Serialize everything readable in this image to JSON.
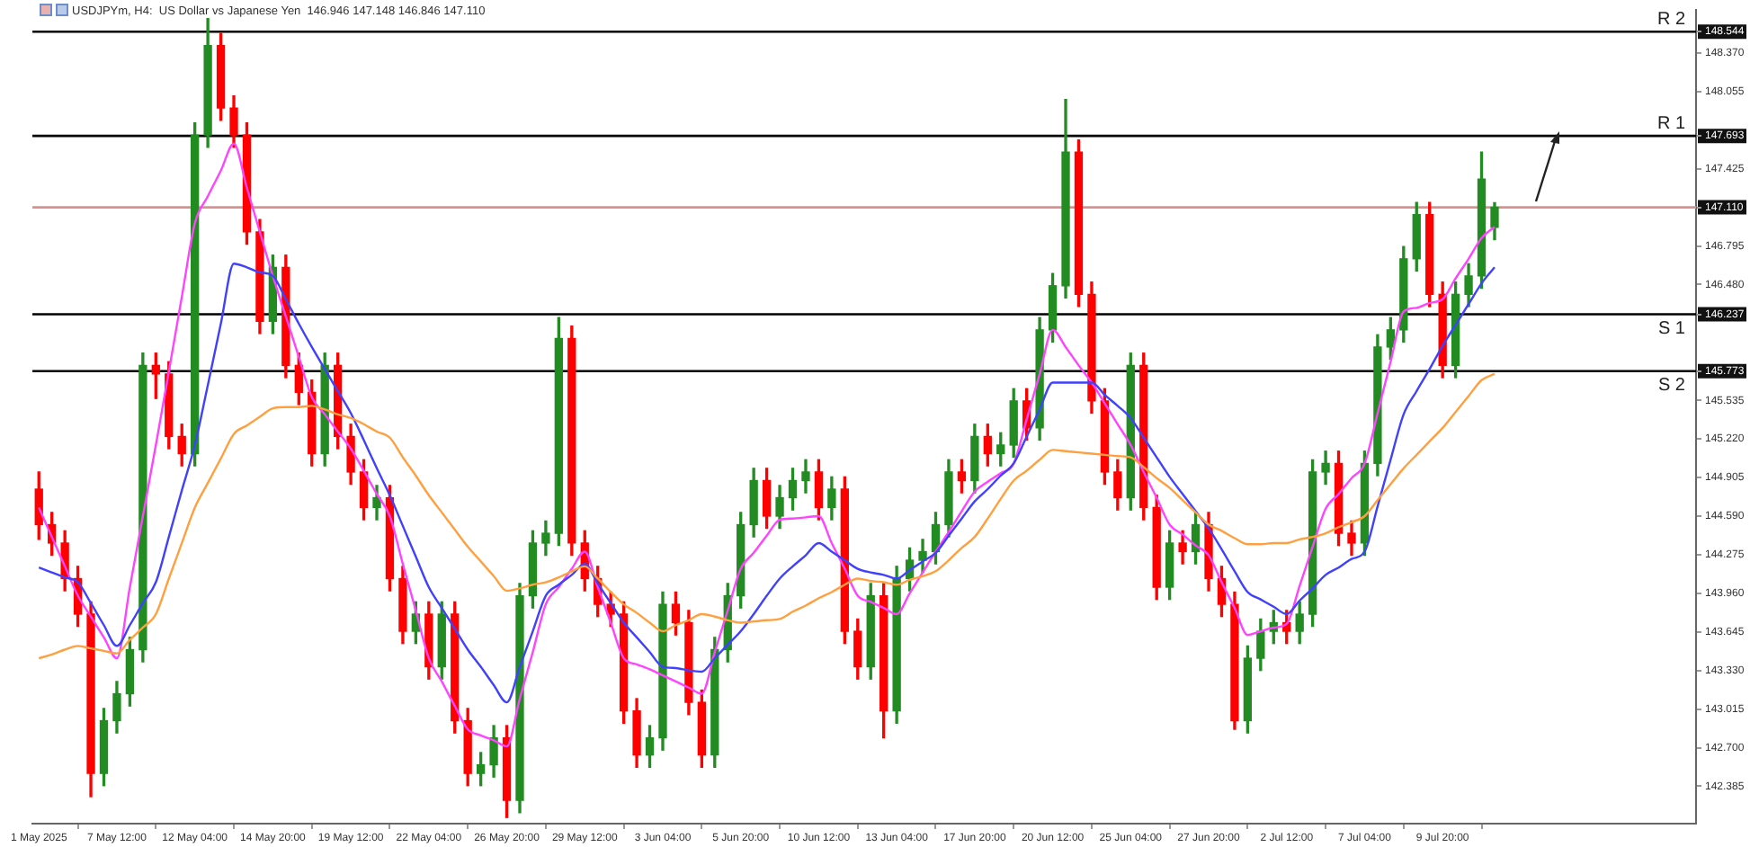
{
  "chart_data": {
    "type": "candlestick",
    "title": "USDJPYm, H4:  US Dollar vs Japanese Yen  146.946 147.148 146.846 147.110",
    "categories": [
      "1 May 2025",
      null,
      null,
      null,
      null,
      null,
      "7 May 12:00",
      null,
      null,
      null,
      null,
      null,
      "12 May 04:00",
      null,
      null,
      null,
      null,
      null,
      "14 May 20:00",
      null,
      null,
      null,
      null,
      null,
      "19 May 12:00",
      null,
      null,
      null,
      null,
      null,
      "22 May 04:00",
      null,
      null,
      null,
      null,
      null,
      "26 May 20:00",
      null,
      null,
      null,
      null,
      null,
      "29 May 12:00",
      null,
      null,
      null,
      null,
      null,
      "3 Jun 04:00",
      null,
      null,
      null,
      null,
      null,
      "5 Jun 20:00",
      null,
      null,
      null,
      null,
      null,
      "10 Jun 12:00",
      null,
      null,
      null,
      null,
      null,
      "13 Jun 04:00",
      null,
      null,
      null,
      null,
      null,
      "17 Jun 20:00",
      null,
      null,
      null,
      null,
      null,
      "20 Jun 12:00",
      null,
      null,
      null,
      null,
      null,
      "25 Jun 04:00",
      null,
      null,
      null,
      null,
      null,
      "27 Jun 20:00",
      null,
      null,
      null,
      null,
      null,
      "2 Jul 12:00",
      null,
      null,
      null,
      null,
      null,
      "7 Jul 04:00",
      null,
      null,
      null,
      null,
      null,
      "9 Jul 20:00",
      null,
      null,
      null,
      null
    ],
    "ohlc": [
      [
        144.81,
        144.95,
        144.4,
        144.52
      ],
      [
        144.52,
        144.62,
        144.27,
        144.37
      ],
      [
        144.37,
        144.47,
        143.98,
        144.08
      ],
      [
        144.08,
        144.18,
        143.69,
        143.79
      ],
      [
        143.79,
        143.89,
        142.3,
        142.49
      ],
      [
        142.49,
        143.02,
        142.39,
        142.92
      ],
      [
        142.92,
        143.24,
        142.82,
        143.14
      ],
      [
        143.14,
        143.6,
        143.04,
        143.5
      ],
      [
        143.5,
        145.92,
        143.4,
        145.82
      ],
      [
        145.82,
        145.92,
        145.55,
        145.75
      ],
      [
        145.75,
        145.85,
        145.14,
        145.24
      ],
      [
        145.24,
        145.34,
        145.0,
        145.1
      ],
      [
        145.1,
        147.8,
        145.0,
        147.7
      ],
      [
        147.7,
        148.65,
        147.6,
        148.43
      ],
      [
        148.43,
        148.53,
        147.82,
        147.92
      ],
      [
        147.92,
        148.02,
        147.6,
        147.7
      ],
      [
        147.7,
        147.8,
        146.81,
        146.91
      ],
      [
        146.91,
        147.01,
        146.08,
        146.18
      ],
      [
        146.18,
        146.72,
        146.08,
        146.62
      ],
      [
        146.62,
        146.72,
        145.72,
        145.82
      ],
      [
        145.82,
        145.92,
        145.5,
        145.6
      ],
      [
        145.6,
        145.7,
        145.0,
        145.1
      ],
      [
        145.1,
        145.92,
        145.0,
        145.82
      ],
      [
        145.82,
        145.92,
        145.14,
        145.24
      ],
      [
        145.24,
        145.34,
        144.85,
        144.95
      ],
      [
        144.95,
        145.05,
        144.56,
        144.66
      ],
      [
        144.66,
        144.84,
        144.56,
        144.74
      ],
      [
        144.74,
        144.84,
        143.98,
        144.08
      ],
      [
        144.08,
        144.18,
        143.55,
        143.65
      ],
      [
        143.65,
        143.89,
        143.55,
        143.79
      ],
      [
        143.79,
        143.89,
        143.26,
        143.36
      ],
      [
        143.36,
        143.89,
        143.26,
        143.79
      ],
      [
        143.79,
        143.89,
        142.82,
        142.92
      ],
      [
        142.92,
        143.02,
        142.39,
        142.49
      ],
      [
        142.49,
        142.66,
        142.39,
        142.56
      ],
      [
        142.56,
        142.88,
        142.46,
        142.78
      ],
      [
        142.78,
        142.88,
        142.13,
        142.27
      ],
      [
        142.27,
        144.04,
        142.17,
        143.94
      ],
      [
        143.94,
        144.47,
        143.84,
        144.37
      ],
      [
        144.37,
        144.55,
        144.27,
        144.45
      ],
      [
        144.45,
        146.21,
        144.35,
        146.04
      ],
      [
        146.04,
        146.14,
        144.27,
        144.37
      ],
      [
        144.37,
        144.47,
        143.98,
        144.08
      ],
      [
        144.08,
        144.18,
        143.77,
        143.87
      ],
      [
        143.87,
        143.97,
        143.69,
        143.79
      ],
      [
        143.79,
        143.89,
        142.9,
        143.0
      ],
      [
        143.0,
        143.1,
        142.54,
        142.64
      ],
      [
        142.64,
        142.88,
        142.54,
        142.78
      ],
      [
        142.78,
        143.97,
        142.68,
        143.87
      ],
      [
        143.87,
        143.97,
        143.62,
        143.72
      ],
      [
        143.72,
        143.82,
        142.97,
        143.07
      ],
      [
        143.07,
        143.17,
        142.54,
        142.64
      ],
      [
        142.64,
        143.6,
        142.54,
        143.5
      ],
      [
        143.5,
        144.04,
        143.4,
        143.94
      ],
      [
        143.94,
        144.62,
        143.84,
        144.52
      ],
      [
        144.52,
        144.98,
        144.42,
        144.88
      ],
      [
        144.88,
        144.98,
        144.49,
        144.59
      ],
      [
        144.59,
        144.84,
        144.49,
        144.74
      ],
      [
        144.74,
        144.98,
        144.64,
        144.88
      ],
      [
        144.88,
        145.05,
        144.78,
        144.95
      ],
      [
        144.95,
        145.05,
        144.56,
        144.66
      ],
      [
        144.66,
        144.91,
        144.56,
        144.81
      ],
      [
        144.81,
        144.91,
        143.55,
        143.65
      ],
      [
        143.65,
        143.75,
        143.26,
        143.36
      ],
      [
        143.36,
        144.04,
        143.26,
        143.94
      ],
      [
        143.94,
        144.04,
        142.78,
        143.0
      ],
      [
        143.0,
        144.18,
        142.9,
        144.08
      ],
      [
        144.08,
        144.33,
        143.98,
        144.23
      ],
      [
        144.23,
        144.4,
        144.13,
        144.3
      ],
      [
        144.3,
        144.62,
        144.2,
        144.52
      ],
      [
        144.52,
        145.05,
        144.42,
        144.95
      ],
      [
        144.95,
        145.05,
        144.78,
        144.88
      ],
      [
        144.88,
        145.34,
        144.78,
        145.24
      ],
      [
        145.24,
        145.34,
        145.0,
        145.1
      ],
      [
        145.1,
        145.27,
        145.0,
        145.17
      ],
      [
        145.17,
        145.63,
        145.07,
        145.53
      ],
      [
        145.53,
        145.63,
        145.21,
        145.31
      ],
      [
        145.31,
        146.21,
        145.21,
        146.11
      ],
      [
        146.11,
        146.57,
        146.01,
        146.47
      ],
      [
        146.47,
        147.99,
        146.37,
        147.56
      ],
      [
        147.56,
        147.66,
        146.3,
        146.4
      ],
      [
        146.4,
        146.5,
        145.43,
        145.53
      ],
      [
        145.53,
        145.63,
        144.85,
        144.95
      ],
      [
        144.95,
        145.05,
        144.64,
        144.74
      ],
      [
        144.74,
        145.92,
        144.64,
        145.82
      ],
      [
        145.82,
        145.92,
        144.56,
        144.66
      ],
      [
        144.66,
        144.76,
        143.91,
        144.01
      ],
      [
        144.01,
        144.47,
        143.91,
        144.37
      ],
      [
        144.37,
        144.47,
        144.2,
        144.3
      ],
      [
        144.3,
        144.62,
        144.2,
        144.52
      ],
      [
        144.52,
        144.62,
        143.98,
        144.08
      ],
      [
        144.08,
        144.18,
        143.77,
        143.87
      ],
      [
        143.87,
        143.97,
        142.85,
        142.92
      ],
      [
        142.92,
        143.53,
        142.82,
        143.43
      ],
      [
        143.43,
        143.75,
        143.33,
        143.65
      ],
      [
        143.65,
        143.82,
        143.55,
        143.72
      ],
      [
        143.72,
        143.82,
        143.55,
        143.65
      ],
      [
        143.65,
        143.89,
        143.55,
        143.79
      ],
      [
        143.79,
        145.05,
        143.69,
        144.95
      ],
      [
        144.95,
        145.12,
        144.85,
        145.02
      ],
      [
        145.02,
        145.12,
        144.35,
        144.45
      ],
      [
        144.45,
        144.55,
        144.27,
        144.37
      ],
      [
        144.37,
        145.12,
        144.27,
        145.02
      ],
      [
        145.02,
        146.07,
        144.92,
        145.97
      ],
      [
        145.97,
        146.21,
        145.87,
        146.11
      ],
      [
        146.11,
        146.79,
        146.01,
        146.69
      ],
      [
        146.69,
        147.15,
        146.59,
        147.05
      ],
      [
        147.05,
        147.15,
        146.3,
        146.4
      ],
      [
        146.4,
        146.5,
        145.72,
        145.82
      ],
      [
        145.82,
        146.5,
        145.72,
        146.4
      ],
      [
        146.4,
        146.65,
        146.3,
        146.55
      ],
      [
        146.55,
        147.56,
        146.45,
        147.34
      ],
      [
        146.946,
        147.148,
        146.846,
        147.11
      ]
    ],
    "colors": [
      "#ff0000",
      "#ff0000",
      "#ff0000",
      "#ff0000",
      "#ff0000",
      "#228b22",
      "#228b22",
      "#228b22",
      "#228b22",
      "#ff0000",
      "#ff0000",
      "#ff0000",
      "#228b22",
      "#228b22",
      "#ff0000",
      "#ff0000",
      "#ff0000",
      "#ff0000",
      "#228b22",
      "#ff0000",
      "#ff0000",
      "#ff0000",
      "#228b22",
      "#ff0000",
      "#ff0000",
      "#ff0000",
      "#228b22",
      "#ff0000",
      "#ff0000",
      "#228b22",
      "#ff0000",
      "#228b22",
      "#ff0000",
      "#ff0000",
      "#228b22",
      "#228b22",
      "#ff0000",
      "#228b22",
      "#228b22",
      "#228b22",
      "#228b22",
      "#ff0000",
      "#ff0000",
      "#ff0000",
      "#ff0000",
      "#ff0000",
      "#ff0000",
      "#228b22",
      "#228b22",
      "#ff0000",
      "#ff0000",
      "#ff0000",
      "#228b22",
      "#228b22",
      "#228b22",
      "#228b22",
      "#ff0000",
      "#228b22",
      "#228b22",
      "#228b22",
      "#ff0000",
      "#228b22",
      "#ff0000",
      "#ff0000",
      "#228b22",
      "#ff0000",
      "#228b22",
      "#228b22",
      "#228b22",
      "#228b22",
      "#228b22",
      "#ff0000",
      "#228b22",
      "#ff0000",
      "#228b22",
      "#228b22",
      "#ff0000",
      "#228b22",
      "#228b22",
      "#228b22",
      "#ff0000",
      "#ff0000",
      "#ff0000",
      "#ff0000",
      "#228b22",
      "#ff0000",
      "#ff0000",
      "#228b22",
      "#ff0000",
      "#228b22",
      "#ff0000",
      "#ff0000",
      "#ff0000",
      "#228b22",
      "#228b22",
      "#228b22",
      "#ff0000",
      "#228b22",
      "#228b22",
      "#228b22",
      "#ff0000",
      "#ff0000",
      "#228b22",
      "#228b22",
      "#228b22",
      "#228b22",
      "#228b22",
      "#ff0000",
      "#ff0000",
      "#228b22",
      "#228b22",
      "#228b22",
      "#228b22"
    ],
    "series": [
      {
        "type": "line",
        "color": "#ff44ff",
        "values": [
          144.66,
          144.42,
          144.18,
          143.94,
          143.77,
          143.6,
          143.43,
          144.01,
          144.59,
          145.17,
          145.77,
          146.38,
          146.98,
          147.2,
          147.41,
          147.63,
          147.27,
          146.91,
          146.55,
          146.22,
          145.89,
          145.56,
          145.42,
          145.28,
          145.14,
          144.96,
          144.77,
          144.59,
          144.2,
          143.82,
          143.43,
          143.24,
          143.04,
          142.85,
          142.8,
          142.76,
          142.71,
          143.1,
          143.48,
          143.87,
          144.01,
          144.16,
          144.3,
          144.01,
          143.72,
          143.43,
          143.38,
          143.34,
          143.29,
          143.24,
          143.19,
          143.14,
          143.48,
          143.82,
          144.16,
          144.29,
          144.43,
          144.56,
          144.57,
          144.58,
          144.59,
          144.37,
          144.16,
          143.94,
          143.89,
          143.84,
          143.79,
          143.96,
          144.13,
          144.3,
          144.46,
          144.63,
          144.79,
          144.87,
          144.94,
          145.02,
          145.38,
          145.75,
          146.11,
          145.97,
          145.82,
          145.68,
          145.51,
          145.34,
          145.17,
          144.95,
          144.74,
          144.52,
          144.44,
          144.35,
          144.27,
          144.05,
          143.84,
          143.62,
          143.65,
          143.68,
          143.71,
          144.02,
          144.34,
          144.65,
          144.77,
          144.9,
          145.02,
          145.43,
          145.85,
          146.26,
          146.29,
          146.33,
          146.36,
          146.53,
          146.69,
          146.86,
          146.95
        ]
      },
      {
        "type": "line",
        "color": "#4040ff",
        "values": [
          144.17,
          144.13,
          144.09,
          144.05,
          143.88,
          143.7,
          143.53,
          143.7,
          143.88,
          144.05,
          144.42,
          144.8,
          145.17,
          145.66,
          146.16,
          146.65,
          146.62,
          146.58,
          146.55,
          146.36,
          146.16,
          145.97,
          145.79,
          145.61,
          145.43,
          145.21,
          144.98,
          144.76,
          144.51,
          144.26,
          144.01,
          143.84,
          143.67,
          143.5,
          143.36,
          143.21,
          143.07,
          143.36,
          143.65,
          143.94,
          144.03,
          144.11,
          144.2,
          144.04,
          143.88,
          143.72,
          143.6,
          143.48,
          143.36,
          143.35,
          143.33,
          143.32,
          143.43,
          143.54,
          143.65,
          143.79,
          143.94,
          144.08,
          144.18,
          144.27,
          144.37,
          144.3,
          144.23,
          144.16,
          144.13,
          144.11,
          144.08,
          144.15,
          144.22,
          144.29,
          144.43,
          144.57,
          144.71,
          144.81,
          144.92,
          145.02,
          145.24,
          145.46,
          145.68,
          145.68,
          145.68,
          145.68,
          145.58,
          145.49,
          145.39,
          145.23,
          145.07,
          144.91,
          144.77,
          144.63,
          144.49,
          144.32,
          144.14,
          143.97,
          143.91,
          143.85,
          143.79,
          143.9,
          144.0,
          144.11,
          144.17,
          144.24,
          144.3,
          144.67,
          145.05,
          145.42,
          145.61,
          145.79,
          145.98,
          146.15,
          146.32,
          146.49,
          146.62
        ]
      },
      {
        "type": "line",
        "color": "#ffa040",
        "values": [
          143.43,
          143.46,
          143.5,
          143.53,
          143.51,
          143.49,
          143.47,
          143.58,
          143.68,
          143.79,
          144.08,
          144.37,
          144.66,
          144.86,
          145.06,
          145.26,
          145.33,
          145.4,
          145.47,
          145.48,
          145.48,
          145.49,
          145.46,
          145.42,
          145.39,
          145.34,
          145.28,
          145.23,
          145.07,
          144.92,
          144.76,
          144.62,
          144.48,
          144.34,
          144.22,
          144.1,
          143.98,
          144.0,
          144.03,
          144.05,
          144.09,
          144.14,
          144.18,
          144.08,
          143.97,
          143.87,
          143.8,
          143.72,
          143.65,
          143.7,
          143.74,
          143.79,
          143.77,
          143.74,
          143.72,
          143.73,
          143.74,
          143.75,
          143.81,
          143.86,
          143.92,
          143.97,
          144.03,
          144.08,
          144.06,
          144.05,
          144.03,
          144.07,
          144.1,
          144.14,
          144.23,
          144.33,
          144.42,
          144.57,
          144.73,
          144.88,
          144.96,
          145.05,
          145.13,
          145.12,
          145.11,
          145.1,
          145.09,
          145.08,
          145.07,
          144.99,
          144.9,
          144.82,
          144.72,
          144.62,
          144.52,
          144.47,
          144.41,
          144.36,
          144.36,
          144.37,
          144.37,
          144.4,
          144.42,
          144.45,
          144.5,
          144.54,
          144.59,
          144.72,
          144.85,
          144.98,
          145.09,
          145.2,
          145.31,
          145.44,
          145.57,
          145.7,
          145.75
        ]
      }
    ],
    "ylim": [
      142.08,
      148.72
    ],
    "yticks": [
      {
        "value": 148.544,
        "label": "148.544"
      },
      {
        "value": 148.37,
        "label": "148.370"
      },
      {
        "value": 148.055,
        "label": "148.055"
      },
      {
        "value": 147.693,
        "label": "147.693"
      },
      {
        "value": 147.425,
        "label": "147.425"
      },
      {
        "value": 147.11,
        "label": "147.110"
      },
      {
        "value": 146.795,
        "label": "146.795"
      },
      {
        "value": 146.48,
        "label": "146.480"
      },
      {
        "value": 146.237,
        "label": "146.237"
      },
      {
        "value": 145.773,
        "label": "145.773"
      },
      {
        "value": 145.535,
        "label": "145.535"
      },
      {
        "value": 145.22,
        "label": "145.220"
      },
      {
        "value": 144.905,
        "label": "144.905"
      },
      {
        "value": 144.59,
        "label": "144.590"
      },
      {
        "value": 144.275,
        "label": "144.275"
      },
      {
        "value": 143.96,
        "label": "143.960"
      },
      {
        "value": 143.645,
        "label": "143.645"
      },
      {
        "value": 143.33,
        "label": "143.330"
      },
      {
        "value": 143.015,
        "label": "143.015"
      },
      {
        "value": 142.7,
        "label": "142.700"
      },
      {
        "value": 142.385,
        "label": "142.385"
      }
    ],
    "ref_lines": [
      {
        "axis": "y",
        "value": 148.544,
        "label": "R 2",
        "color": "#000000"
      },
      {
        "axis": "y",
        "value": 147.693,
        "label": "R 1",
        "color": "#000000"
      },
      {
        "axis": "y",
        "value": 147.11,
        "color": "#d89090"
      },
      {
        "axis": "y",
        "value": 146.237,
        "label": "S 1",
        "color": "#000000"
      },
      {
        "axis": "y",
        "value": 145.773,
        "label": "S 2",
        "color": "#000000"
      }
    ],
    "grid": false,
    "legend": false,
    "marker": "none"
  }
}
